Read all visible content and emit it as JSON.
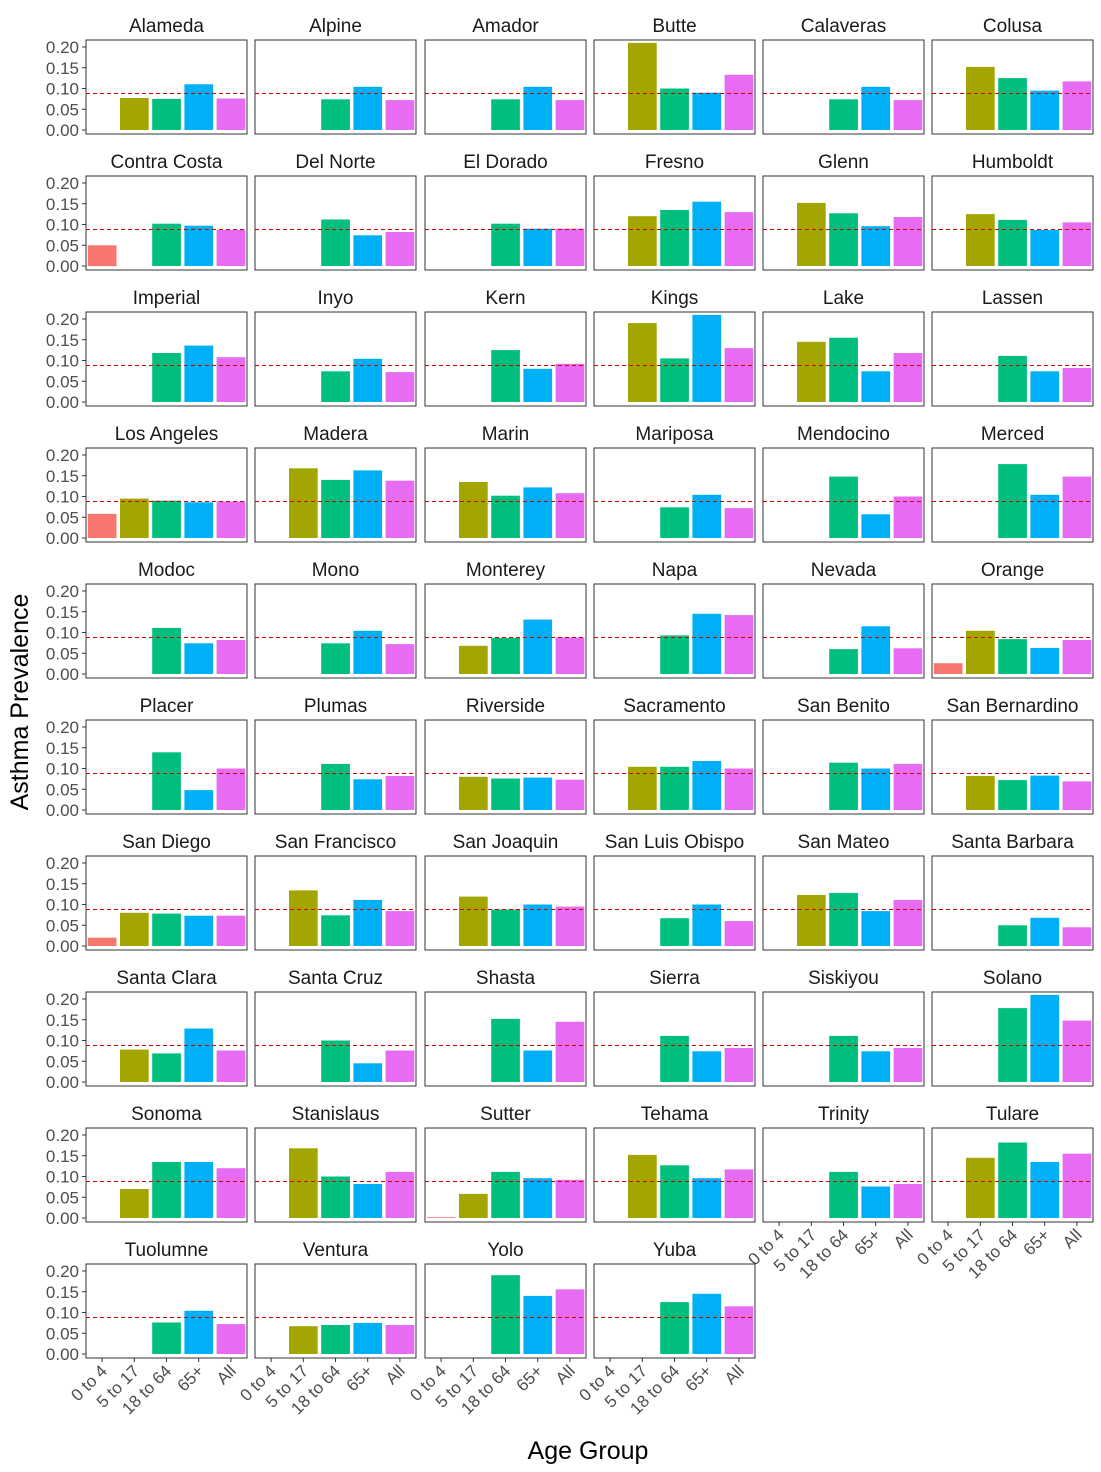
{
  "chart_data": {
    "type": "bar",
    "layout": "facet-grid",
    "xlabel": "Age Group",
    "ylabel": "Asthma Prevalence",
    "categories": [
      "0 to 4",
      "5 to 17",
      "18 to 64",
      "65+",
      "All"
    ],
    "category_colors": [
      "#F8766D",
      "#A3A500",
      "#00BF7D",
      "#00B0F6",
      "#E76BF3"
    ],
    "reference_line": {
      "value": 0.088,
      "color": "#cc0000",
      "style": "dashed"
    },
    "ylim": [
      0,
      0.21
    ],
    "yticks": [
      "0.00",
      "0.05",
      "0.10",
      "0.15",
      "0.20"
    ],
    "ytick_values": [
      0,
      0.05,
      0.1,
      0.15,
      0.2
    ],
    "grid": false,
    "legend": "none",
    "panels": [
      {
        "name": "Alameda",
        "values": [
          null,
          0.077,
          0.075,
          0.11,
          0.076
        ]
      },
      {
        "name": "Alpine",
        "values": [
          null,
          null,
          0.074,
          0.104,
          0.072
        ]
      },
      {
        "name": "Amador",
        "values": [
          null,
          null,
          0.074,
          0.104,
          0.072
        ]
      },
      {
        "name": "Butte",
        "values": [
          null,
          0.21,
          0.1,
          0.09,
          0.133
        ]
      },
      {
        "name": "Calaveras",
        "values": [
          null,
          null,
          0.074,
          0.104,
          0.072
        ]
      },
      {
        "name": "Colusa",
        "values": [
          null,
          0.152,
          0.125,
          0.095,
          0.117
        ]
      },
      {
        "name": "Contra Costa",
        "values": [
          0.05,
          null,
          0.102,
          0.097,
          0.087
        ]
      },
      {
        "name": "Del Norte",
        "values": [
          null,
          null,
          0.112,
          0.074,
          0.082
        ]
      },
      {
        "name": "El Dorado",
        "values": [
          null,
          null,
          0.102,
          0.09,
          0.09
        ]
      },
      {
        "name": "Fresno",
        "values": [
          null,
          0.12,
          0.135,
          0.155,
          0.13
        ]
      },
      {
        "name": "Glenn",
        "values": [
          null,
          0.152,
          0.127,
          0.096,
          0.118
        ]
      },
      {
        "name": "Humboldt",
        "values": [
          null,
          0.125,
          0.111,
          0.087,
          0.105
        ]
      },
      {
        "name": "Imperial",
        "values": [
          null,
          null,
          0.118,
          0.136,
          0.108
        ]
      },
      {
        "name": "Inyo",
        "values": [
          null,
          null,
          0.074,
          0.104,
          0.072
        ]
      },
      {
        "name": "Kern",
        "values": [
          null,
          null,
          0.125,
          0.08,
          0.092
        ]
      },
      {
        "name": "Kings",
        "values": [
          null,
          0.19,
          0.105,
          0.21,
          0.13
        ]
      },
      {
        "name": "Lake",
        "values": [
          null,
          0.145,
          0.155,
          0.074,
          0.118
        ]
      },
      {
        "name": "Lassen",
        "values": [
          null,
          null,
          0.111,
          0.074,
          0.082
        ]
      },
      {
        "name": "Los Angeles",
        "values": [
          0.058,
          0.095,
          0.09,
          0.086,
          0.088
        ]
      },
      {
        "name": "Madera",
        "values": [
          null,
          0.168,
          0.14,
          0.163,
          0.138
        ]
      },
      {
        "name": "Marin",
        "values": [
          null,
          0.135,
          0.102,
          0.122,
          0.108
        ]
      },
      {
        "name": "Mariposa",
        "values": [
          null,
          null,
          0.074,
          0.104,
          0.072
        ]
      },
      {
        "name": "Mendocino",
        "values": [
          null,
          null,
          0.148,
          0.057,
          0.1
        ]
      },
      {
        "name": "Merced",
        "values": [
          null,
          null,
          0.178,
          0.104,
          0.148
        ]
      },
      {
        "name": "Modoc",
        "values": [
          null,
          null,
          0.111,
          0.074,
          0.082
        ]
      },
      {
        "name": "Mono",
        "values": [
          null,
          null,
          0.074,
          0.104,
          0.072
        ]
      },
      {
        "name": "Monterey",
        "values": [
          null,
          0.068,
          0.087,
          0.131,
          0.088
        ]
      },
      {
        "name": "Napa",
        "values": [
          null,
          null,
          0.093,
          0.145,
          0.142
        ]
      },
      {
        "name": "Nevada",
        "values": [
          null,
          null,
          0.06,
          0.115,
          0.062
        ]
      },
      {
        "name": "Orange",
        "values": [
          0.026,
          0.104,
          0.084,
          0.063,
          0.082
        ]
      },
      {
        "name": "Placer",
        "values": [
          null,
          null,
          0.139,
          0.048,
          0.1
        ]
      },
      {
        "name": "Plumas",
        "values": [
          null,
          null,
          0.111,
          0.074,
          0.082
        ]
      },
      {
        "name": "Riverside",
        "values": [
          null,
          0.08,
          0.076,
          0.078,
          0.073
        ]
      },
      {
        "name": "Sacramento",
        "values": [
          null,
          0.104,
          0.104,
          0.118,
          0.1
        ]
      },
      {
        "name": "San Benito",
        "values": [
          null,
          null,
          0.114,
          0.1,
          0.111
        ]
      },
      {
        "name": "San Bernardino",
        "values": [
          null,
          0.082,
          0.072,
          0.083,
          0.069
        ]
      },
      {
        "name": "San Diego",
        "values": [
          0.02,
          0.08,
          0.078,
          0.073,
          0.073
        ]
      },
      {
        "name": "San Francisco",
        "values": [
          null,
          0.134,
          0.074,
          0.111,
          0.084
        ]
      },
      {
        "name": "San Joaquin",
        "values": [
          null,
          0.119,
          0.088,
          0.1,
          0.095
        ]
      },
      {
        "name": "San Luis Obispo",
        "values": [
          null,
          null,
          0.067,
          0.1,
          0.06
        ]
      },
      {
        "name": "San Mateo",
        "values": [
          null,
          0.123,
          0.128,
          0.084,
          0.111
        ]
      },
      {
        "name": "Santa Barbara",
        "values": [
          null,
          null,
          0.05,
          0.068,
          0.045
        ]
      },
      {
        "name": "Santa Clara",
        "values": [
          null,
          0.078,
          0.069,
          0.129,
          0.076
        ]
      },
      {
        "name": "Santa Cruz",
        "values": [
          null,
          null,
          0.1,
          0.045,
          0.076
        ]
      },
      {
        "name": "Shasta",
        "values": [
          null,
          null,
          0.152,
          0.076,
          0.145
        ]
      },
      {
        "name": "Sierra",
        "values": [
          null,
          null,
          0.111,
          0.074,
          0.082
        ]
      },
      {
        "name": "Siskiyou",
        "values": [
          null,
          null,
          0.111,
          0.074,
          0.082
        ]
      },
      {
        "name": "Solano",
        "values": [
          null,
          null,
          0.178,
          0.21,
          0.148
        ]
      },
      {
        "name": "Sonoma",
        "values": [
          null,
          0.07,
          0.135,
          0.135,
          0.12
        ]
      },
      {
        "name": "Stanislaus",
        "values": [
          null,
          0.168,
          0.1,
          0.082,
          0.111
        ]
      },
      {
        "name": "Sutter",
        "values": [
          0.002,
          0.058,
          0.111,
          0.096,
          0.092
        ]
      },
      {
        "name": "Tehama",
        "values": [
          null,
          0.152,
          0.127,
          0.096,
          0.117
        ]
      },
      {
        "name": "Trinity",
        "values": [
          null,
          null,
          0.111,
          0.076,
          0.082
        ]
      },
      {
        "name": "Tulare",
        "values": [
          null,
          0.145,
          0.182,
          0.135,
          0.155
        ]
      },
      {
        "name": "Tuolumne",
        "values": [
          null,
          null,
          0.076,
          0.104,
          0.072
        ]
      },
      {
        "name": "Ventura",
        "values": [
          null,
          0.067,
          0.07,
          0.075,
          0.07
        ]
      },
      {
        "name": "Yolo",
        "values": [
          null,
          null,
          0.19,
          0.14,
          0.156
        ]
      },
      {
        "name": "Yuba",
        "values": [
          null,
          null,
          0.125,
          0.145,
          0.115
        ]
      }
    ]
  }
}
